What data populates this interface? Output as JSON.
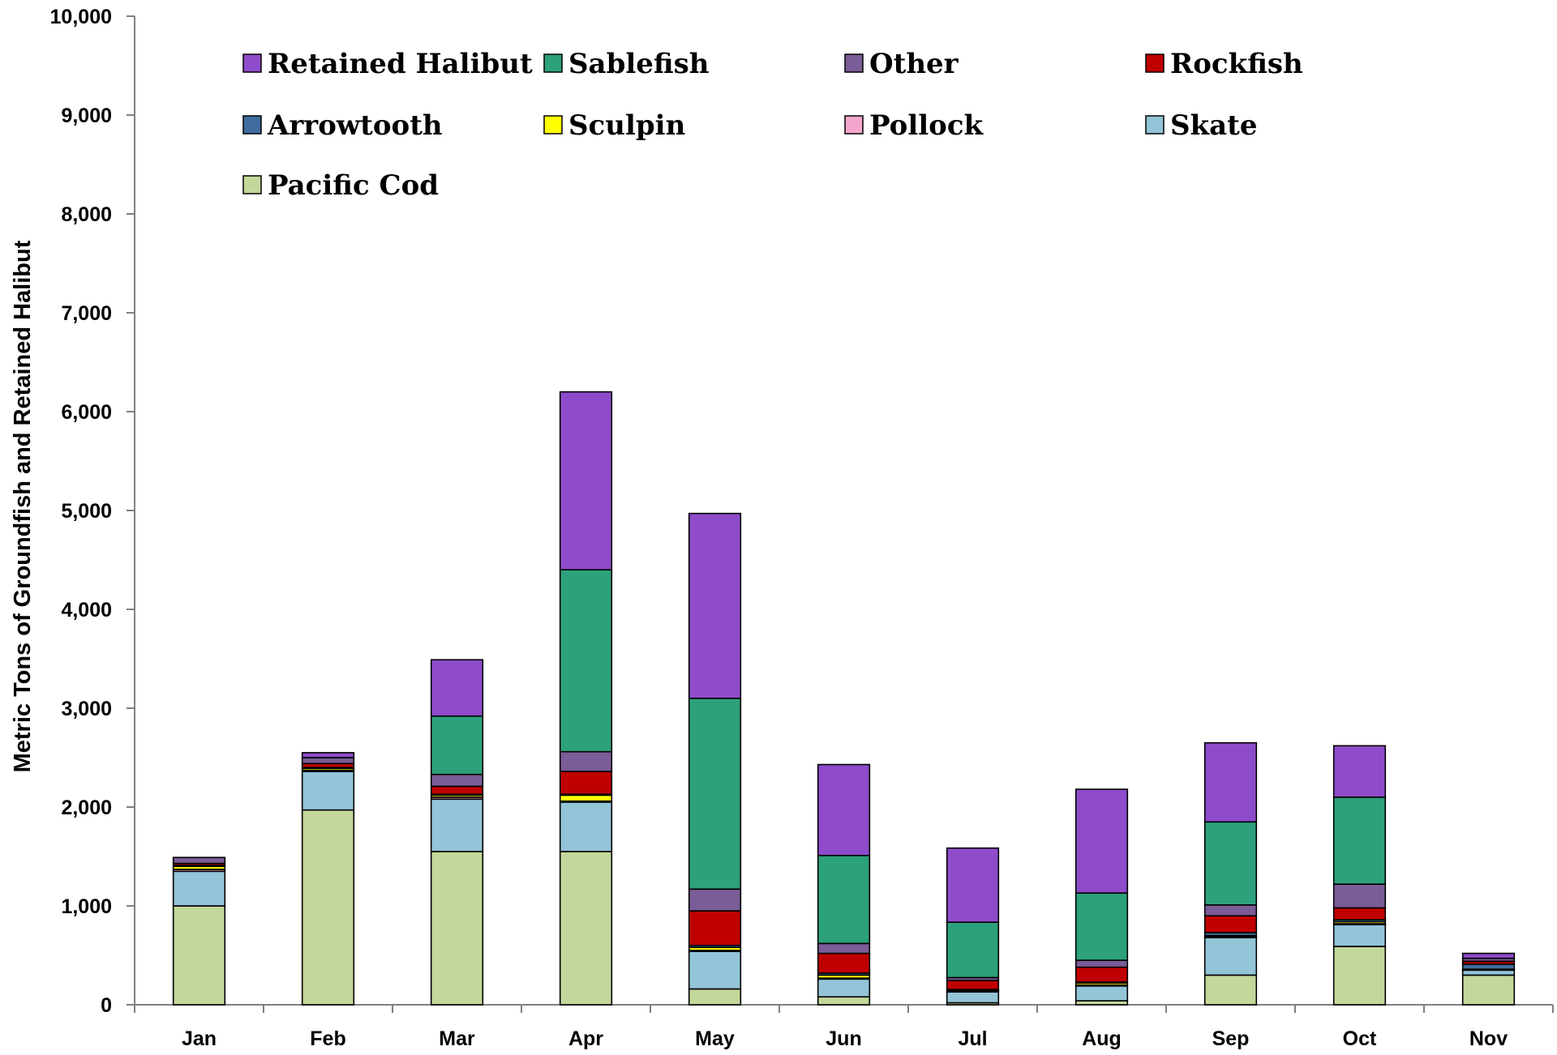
{
  "chart_data": {
    "type": "bar",
    "stacked": true,
    "title": "",
    "xlabel": "",
    "ylabel": "Metric Tons of Groundfish and Retained Halibut",
    "ylim": [
      0,
      10000
    ],
    "ytick_values": [
      0,
      1000,
      2000,
      3000,
      4000,
      5000,
      6000,
      7000,
      8000,
      9000,
      10000
    ],
    "ytick_labels": [
      "0",
      "1,000",
      "2,000",
      "3,000",
      "4,000",
      "5,000",
      "6,000",
      "7,000",
      "8,000",
      "9,000",
      "10,000"
    ],
    "grid": false,
    "legend_position": "top, inside plot area (4 columns)",
    "categories": [
      "Jan",
      "Feb",
      "Mar",
      "Apr",
      "May",
      "Jun",
      "Jul",
      "Aug",
      "Sep",
      "Oct",
      "Nov"
    ],
    "series": [
      {
        "name": "Pacific Cod",
        "color": "#c4d79b",
        "values": [
          1000,
          1970,
          1550,
          1550,
          160,
          80,
          20,
          40,
          300,
          590,
          300
        ]
      },
      {
        "name": "Skate",
        "color": "#93c4d8",
        "values": [
          350,
          390,
          530,
          500,
          380,
          180,
          110,
          150,
          380,
          220,
          50
        ]
      },
      {
        "name": "Pollock",
        "color": "#f4a6cc",
        "values": [
          20,
          10,
          20,
          10,
          10,
          10,
          5,
          10,
          10,
          10,
          5
        ]
      },
      {
        "name": "Sculpin",
        "color": "#ffff00",
        "values": [
          30,
          20,
          20,
          60,
          30,
          30,
          10,
          20,
          10,
          20,
          5
        ]
      },
      {
        "name": "Arrowtooth",
        "color": "#3e6c9c",
        "values": [
          10,
          10,
          10,
          10,
          20,
          20,
          10,
          10,
          30,
          20,
          50
        ]
      },
      {
        "name": "Rockfish",
        "color": "#c00000",
        "values": [
          20,
          40,
          80,
          230,
          350,
          200,
          90,
          150,
          170,
          120,
          30
        ]
      },
      {
        "name": "Other",
        "color": "#7a5c96",
        "values": [
          60,
          60,
          120,
          200,
          220,
          100,
          30,
          70,
          110,
          240,
          30
        ]
      },
      {
        "name": "Sablefish",
        "color": "#2ca17c",
        "values": [
          0,
          0,
          590,
          1840,
          1930,
          890,
          560,
          680,
          840,
          880,
          0
        ]
      },
      {
        "name": "Retained Halibut",
        "color": "#8e4bca",
        "values": [
          0,
          50,
          570,
          1800,
          1870,
          920,
          750,
          1050,
          800,
          520,
          50
        ]
      }
    ],
    "legend_order": [
      "Retained Halibut",
      "Sablefish",
      "Other",
      "Rockfish",
      "Arrowtooth",
      "Sculpin",
      "Pollock",
      "Skate",
      "Pacific Cod"
    ]
  }
}
